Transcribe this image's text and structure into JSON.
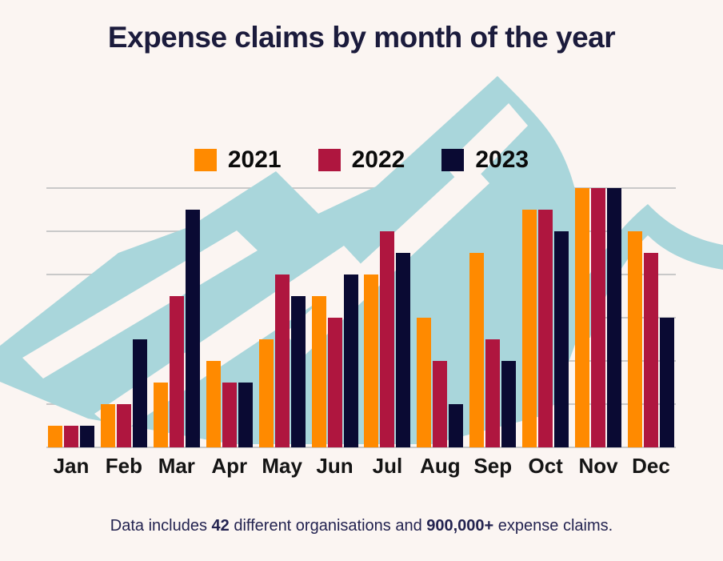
{
  "title": "Expense claims by month of the year",
  "footer": {
    "part1": "Data includes ",
    "part2": "42",
    "part3": " different organisations and ",
    "part4": "900,000+",
    "part5": " expense claims."
  },
  "palette": {
    "background": "#fbf5f2",
    "title_text": "#1b1b3c",
    "footer_text": "#232350",
    "gridline": "#c9c9c9",
    "mountain_blue": "#a9d6db",
    "series_2021": "#ff8a00",
    "series_2022": "#af163f",
    "series_2023": "#0a0a33"
  },
  "chart_data": {
    "type": "bar",
    "title": "Expense claims by month of the year",
    "xlabel": "",
    "ylabel": "",
    "categories": [
      "Jan",
      "Feb",
      "Mar",
      "Apr",
      "May",
      "Jun",
      "Jul",
      "Aug",
      "Sep",
      "Oct",
      "Nov",
      "Dec"
    ],
    "series": [
      {
        "name": "2021",
        "color": "#ff8a00",
        "values": [
          5,
          10,
          15,
          20,
          25,
          35,
          40,
          30,
          45,
          55,
          60,
          50
        ]
      },
      {
        "name": "2022",
        "color": "#af163f",
        "values": [
          5,
          10,
          35,
          15,
          40,
          30,
          50,
          20,
          25,
          55,
          60,
          45
        ]
      },
      {
        "name": "2023",
        "color": "#0a0a33",
        "values": [
          5,
          25,
          55,
          15,
          35,
          40,
          45,
          10,
          20,
          50,
          60,
          30
        ]
      }
    ],
    "ylim": [
      0,
      60
    ],
    "gridline_step": 10,
    "grid": true,
    "y_axis_labels_shown": false,
    "legend_position": "top-center",
    "annotation": "decorative light-blue mountain silhouette behind bars"
  }
}
